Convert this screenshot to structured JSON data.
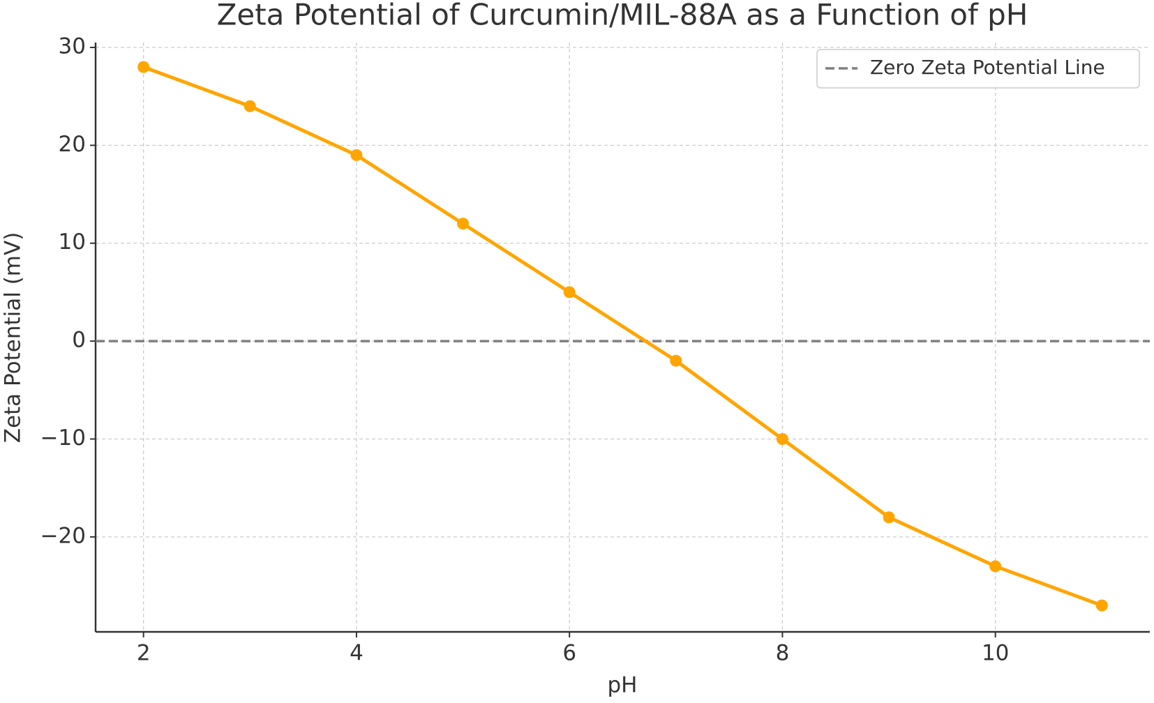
{
  "chart_data": {
    "type": "line",
    "title": "Zeta Potential of Curcumin/MIL-88A as a Function of pH",
    "x_label": "pH",
    "y_label": "Zeta Potential (mV)",
    "x": [
      2,
      3,
      4,
      5,
      6,
      7,
      8,
      9,
      10,
      11
    ],
    "values": [
      28,
      24,
      19,
      12,
      5,
      -2,
      -10,
      -18,
      -23,
      -27
    ],
    "color": "#ffa500",
    "hlines": [
      {
        "value": 0,
        "name": "Zero Zeta Potential Line",
        "color": "#808080"
      }
    ],
    "xlim": [
      1.55,
      11.45
    ],
    "xticks": [
      2,
      4,
      6,
      8,
      10
    ],
    "ylim": [
      -29.7,
      30.5
    ],
    "yticks": [
      {
        "value": -20,
        "label": "−20"
      },
      {
        "value": -10,
        "label": "−10"
      },
      0,
      10,
      20,
      30
    ],
    "grid": true,
    "legend": "upper right"
  }
}
